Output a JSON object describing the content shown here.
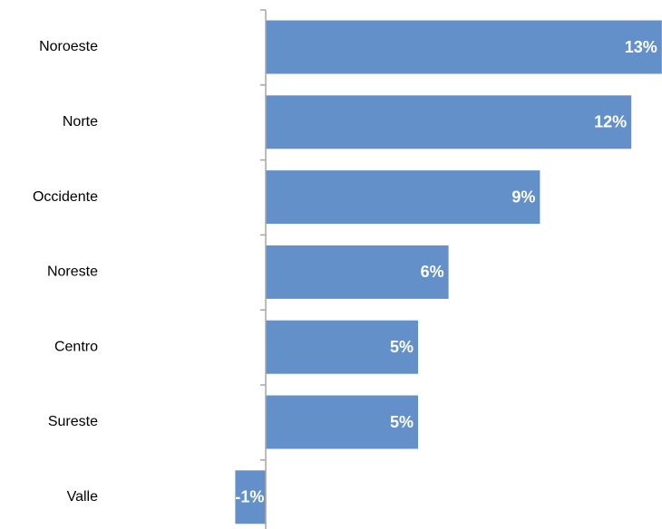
{
  "chart_data": {
    "type": "bar",
    "orientation": "horizontal",
    "title": "",
    "xlabel": "",
    "ylabel": "",
    "categories": [
      "Noroeste",
      "Norte",
      "Occidente",
      "Noreste",
      "Centro",
      "Sureste",
      "Valle"
    ],
    "values": [
      13,
      12,
      9,
      6,
      5,
      5,
      -1
    ],
    "data_labels": [
      "13%",
      "12%",
      "9%",
      "6%",
      "5%",
      "5%",
      "-1%"
    ],
    "value_unit": "%",
    "xlim": [
      -1,
      13
    ],
    "grid": false,
    "legend": "none",
    "bar_color": "#6390c8",
    "label_color": "#ffffff",
    "axis_color": "#a6a6a6"
  }
}
